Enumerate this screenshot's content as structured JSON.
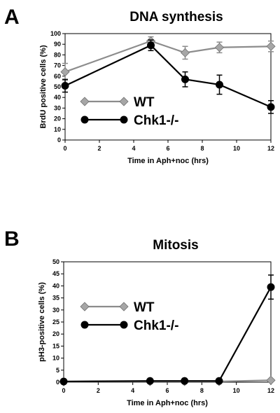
{
  "colors": {
    "wt": "#a6a6a6",
    "wt_line": "#8c8c8c",
    "chk1": "#000000"
  },
  "chart_data": [
    {
      "panel_label": "A",
      "type": "line",
      "title": "DNA synthesis",
      "xlabel": "Time in Aph+noc (hrs)",
      "ylabel": "BrdU positive cells (%)",
      "xlim": [
        0,
        12
      ],
      "ylim": [
        0,
        100
      ],
      "xticks": [
        0,
        2,
        4,
        6,
        8,
        10,
        12
      ],
      "yticks": [
        0,
        10,
        20,
        30,
        40,
        50,
        60,
        70,
        80,
        90,
        100
      ],
      "grid": false,
      "legend_position": "bottom-left",
      "series": [
        {
          "name": "WT",
          "marker": "diamond",
          "x": [
            0,
            5,
            7,
            9,
            12
          ],
          "y": [
            64,
            93,
            82,
            87,
            88
          ],
          "err": [
            8,
            4,
            6,
            5,
            5
          ]
        },
        {
          "name": "Chk1-/-",
          "marker": "circle",
          "x": [
            0,
            5,
            7,
            9,
            12
          ],
          "y": [
            51,
            89,
            57,
            52,
            31
          ],
          "err": [
            6,
            5,
            7,
            9,
            6
          ]
        }
      ]
    },
    {
      "panel_label": "B",
      "type": "line",
      "title": "Mitosis",
      "xlabel": "Time in Aph+noc (hrs)",
      "ylabel": "pH3-positive cells (%)",
      "xlim": [
        0,
        12
      ],
      "ylim": [
        0,
        50
      ],
      "xticks": [
        0,
        2,
        4,
        6,
        8,
        10,
        12
      ],
      "yticks": [
        0,
        5,
        10,
        15,
        20,
        25,
        30,
        35,
        40,
        45,
        50
      ],
      "grid": false,
      "legend_position": "left",
      "series": [
        {
          "name": "WT",
          "marker": "diamond",
          "x": [
            0,
            5,
            7,
            9,
            12
          ],
          "y": [
            0.2,
            0.3,
            0.3,
            0.3,
            0.8
          ],
          "err": [
            0,
            0,
            0,
            0,
            0
          ]
        },
        {
          "name": "Chk1-/-",
          "marker": "circle",
          "x": [
            0,
            5,
            7,
            9,
            12
          ],
          "y": [
            0.3,
            0.5,
            0.5,
            0.5,
            39.5
          ],
          "err": [
            0,
            0,
            0,
            0,
            5
          ]
        }
      ]
    }
  ]
}
